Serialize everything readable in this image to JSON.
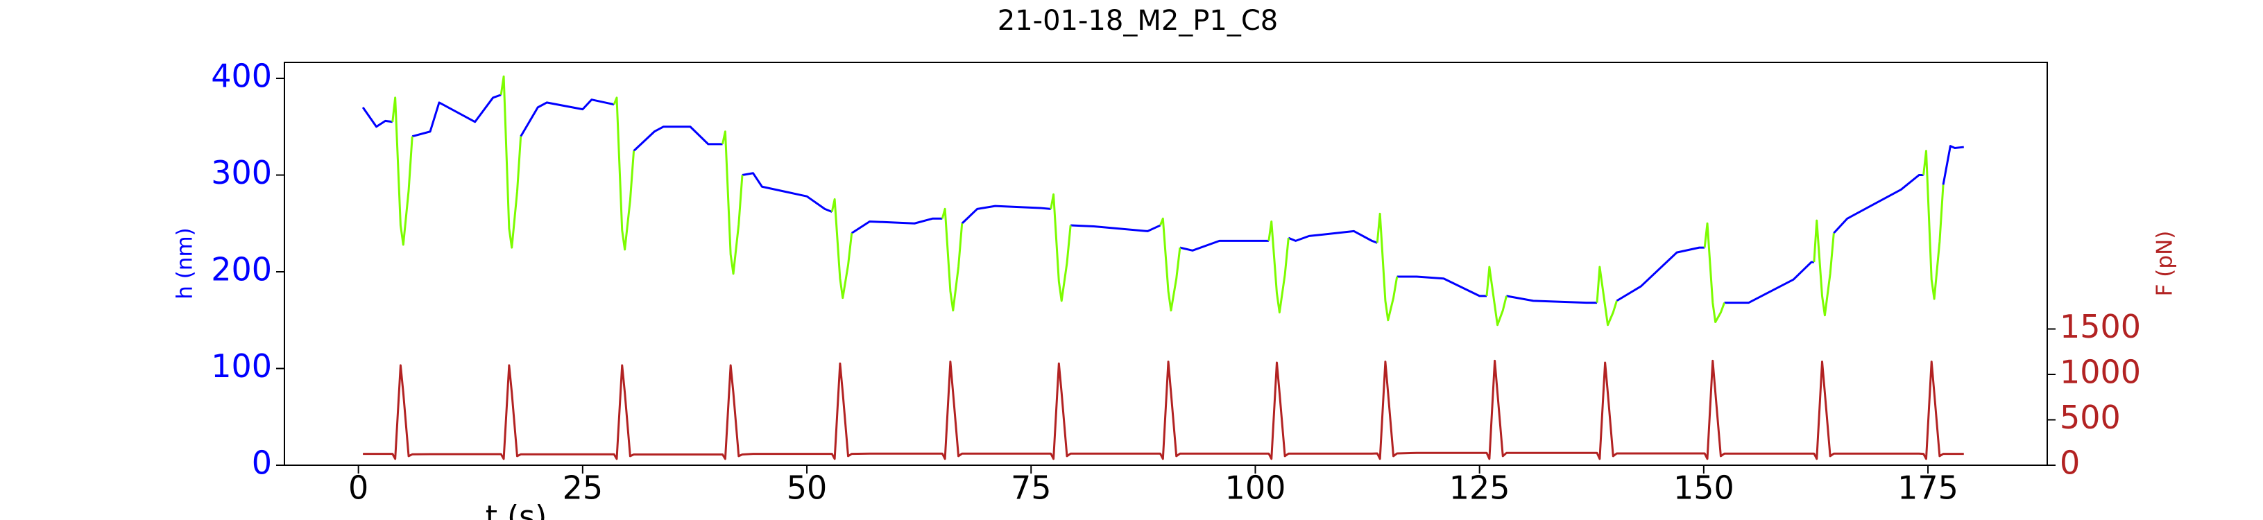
{
  "chart_data": {
    "type": "line",
    "title": "21-01-18_M2_P1_C8",
    "xlabel": "t (s)",
    "ylabel": "h (nm)",
    "y2label": "F (pN)",
    "xlim": [
      -8.25,
      188.3
    ],
    "xticks": [
      0,
      25,
      50,
      75,
      100,
      125,
      150,
      175
    ],
    "ylim": [
      0,
      416.5
    ],
    "yticks": [
      0,
      100,
      200,
      300,
      400
    ],
    "y2lim": [
      0,
      4435
    ],
    "y2ticks": [
      0,
      500,
      1000,
      1500
    ],
    "x": [
      0.5,
      2,
      3,
      3.8,
      4.1,
      4.7,
      5.0,
      5.6,
      6.0,
      8,
      9,
      13,
      15,
      15.9,
      16.2,
      16.8,
      17.1,
      17.7,
      18.1,
      20,
      21,
      25,
      26,
      28.5,
      28.8,
      29.4,
      29.7,
      30.3,
      30.7,
      33,
      34,
      37,
      39,
      40.6,
      40.9,
      41.5,
      41.8,
      42.4,
      42.8,
      44,
      45,
      50,
      52,
      52.8,
      53.1,
      53.7,
      54.0,
      54.6,
      55.0,
      57,
      62,
      64,
      65.1,
      65.4,
      66.0,
      66.3,
      66.9,
      67.3,
      69,
      71,
      76,
      77.2,
      77.5,
      78.1,
      78.4,
      79.0,
      79.4,
      82,
      88,
      89.4,
      89.7,
      90.3,
      90.6,
      91.2,
      91.6,
      93,
      96,
      100,
      101.5,
      101.8,
      102.4,
      102.7,
      103.3,
      103.7,
      104.5,
      106,
      111,
      113,
      113.6,
      113.9,
      114.5,
      114.8,
      115.4,
      115.8,
      118,
      121,
      125,
      125.8,
      126.1,
      126.7,
      127.0,
      127.6,
      128.0,
      131,
      137,
      138.1,
      138.4,
      139.0,
      139.3,
      139.9,
      140.3,
      143,
      147,
      149.5,
      150.1,
      150.4,
      151.0,
      151.3,
      151.9,
      152.3,
      155,
      160,
      162,
      162.3,
      162.6,
      163.2,
      163.5,
      164.1,
      164.5,
      166,
      169,
      172,
      174,
      174.5,
      174.8,
      175.4,
      175.7,
      176.3,
      176.7,
      177.5,
      178,
      179
    ],
    "series": [
      {
        "color": "#0000ff",
        "axis": "y",
        "values": [
          370,
          350,
          356,
          355,
          null,
          null,
          null,
          null,
          340,
          345,
          375,
          355,
          380,
          383,
          null,
          null,
          null,
          null,
          340,
          370,
          375,
          368,
          378,
          373,
          null,
          null,
          null,
          null,
          325,
          345,
          350,
          350,
          332,
          332,
          null,
          null,
          null,
          null,
          300,
          302,
          288,
          278,
          265,
          262,
          null,
          null,
          null,
          null,
          240,
          252,
          250,
          255,
          255,
          null,
          null,
          null,
          null,
          250,
          265,
          268,
          266,
          265,
          null,
          null,
          null,
          null,
          248,
          247,
          242,
          248,
          null,
          null,
          null,
          null,
          225,
          222,
          232,
          232,
          232,
          null,
          null,
          null,
          null,
          235,
          232,
          237,
          242,
          232,
          230,
          null,
          null,
          null,
          null,
          195,
          195,
          193,
          175,
          175,
          null,
          null,
          null,
          null,
          175,
          170,
          168,
          168,
          null,
          null,
          null,
          null,
          170,
          185,
          220,
          225,
          225,
          null,
          null,
          null,
          null,
          168,
          168,
          192,
          210,
          210,
          null,
          null,
          null,
          null,
          240,
          255,
          270,
          285,
          300,
          300,
          null,
          null,
          null,
          null,
          290,
          330,
          328,
          329
        ]
      },
      {
        "color": "#7cfc00",
        "axis": "y",
        "values": [
          null,
          null,
          null,
          355,
          380,
          248,
          228,
          284,
          340,
          null,
          null,
          null,
          null,
          383,
          402,
          245,
          225,
          283,
          340,
          null,
          null,
          null,
          null,
          373,
          380,
          243,
          223,
          274,
          325,
          null,
          null,
          null,
          null,
          332,
          345,
          218,
          198,
          249,
          300,
          null,
          null,
          null,
          null,
          262,
          275,
          193,
          173,
          207,
          240,
          null,
          null,
          null,
          255,
          265,
          180,
          160,
          205,
          250,
          null,
          null,
          null,
          265,
          280,
          190,
          170,
          209,
          248,
          null,
          null,
          248,
          255,
          180,
          160,
          193,
          225,
          null,
          null,
          null,
          232,
          252,
          178,
          158,
          197,
          235,
          null,
          null,
          null,
          null,
          230,
          260,
          170,
          150,
          173,
          195,
          null,
          null,
          null,
          175,
          205,
          165,
          145,
          160,
          175,
          null,
          null,
          168,
          205,
          165,
          145,
          158,
          170,
          null,
          null,
          null,
          225,
          250,
          168,
          148,
          158,
          168,
          null,
          null,
          null,
          210,
          253,
          175,
          155,
          198,
          240,
          null,
          null,
          null,
          null,
          300,
          325,
          192,
          172,
          231,
          290,
          null,
          null,
          null
        ]
      },
      {
        "color": "#b22222",
        "axis": "y2",
        "values": [
          125,
          125,
          125,
          125,
          70,
          1100,
          800,
          100,
          120,
          122,
          122,
          122,
          122,
          122,
          70,
          1100,
          800,
          100,
          120,
          120,
          120,
          120,
          120,
          120,
          70,
          1100,
          800,
          100,
          118,
          118,
          118,
          118,
          118,
          118,
          70,
          1100,
          800,
          100,
          118,
          125,
          125,
          125,
          125,
          125,
          70,
          1120,
          800,
          100,
          125,
          128,
          128,
          128,
          128,
          70,
          1140,
          800,
          100,
          128,
          128,
          128,
          128,
          128,
          70,
          1120,
          800,
          100,
          128,
          128,
          128,
          128,
          70,
          1140,
          800,
          100,
          128,
          128,
          128,
          128,
          128,
          70,
          1130,
          800,
          100,
          128,
          128,
          128,
          128,
          128,
          130,
          70,
          1140,
          800,
          100,
          130,
          135,
          135,
          135,
          135,
          70,
          1150,
          800,
          100,
          135,
          135,
          135,
          135,
          70,
          1130,
          800,
          100,
          130,
          130,
          130,
          130,
          130,
          70,
          1150,
          800,
          100,
          128,
          128,
          128,
          128,
          128,
          70,
          1140,
          800,
          100,
          128,
          128,
          128,
          128,
          128,
          125,
          70,
          1140,
          800,
          100,
          125,
          125,
          125,
          125
        ]
      }
    ]
  }
}
